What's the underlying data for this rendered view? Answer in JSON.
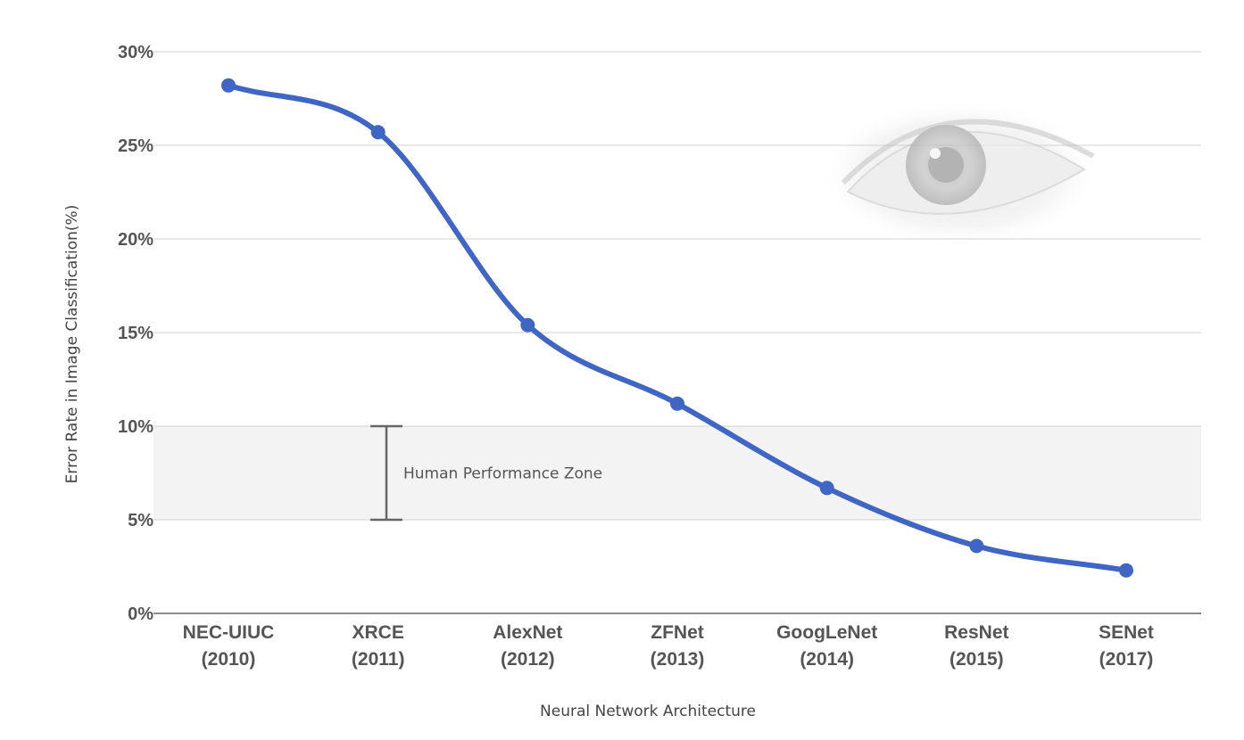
{
  "chart_data": {
    "type": "line",
    "title": "",
    "xlabel": "Neural Network Architecture",
    "ylabel": "Error Rate in Image Classification(%)",
    "categories": [
      [
        "NEC-UIUC",
        "(2010)"
      ],
      [
        "XRCE",
        "(2011)"
      ],
      [
        "AlexNet",
        "(2012)"
      ],
      [
        "ZFNet",
        "(2013)"
      ],
      [
        "GoogLeNet",
        "(2014)"
      ],
      [
        "ResNet",
        "(2015)"
      ],
      [
        "SENet",
        "(2017)"
      ]
    ],
    "series": [
      {
        "values": [
          28.2,
          25.7,
          15.4,
          11.2,
          6.7,
          3.6,
          2.3
        ]
      }
    ],
    "ylim": [
      0,
      30
    ],
    "yticks": [
      0,
      5,
      10,
      15,
      20,
      25,
      30
    ],
    "ytick_labels": [
      "0%",
      "5%",
      "10%",
      "15%",
      "20%",
      "25%",
      "30%"
    ],
    "grid": true,
    "smooth": true,
    "line_color": "#3f66c4",
    "band": {
      "from": 5,
      "to": 10,
      "color": "#f3f3f3"
    },
    "annotation": {
      "text": "Human Performance Zone",
      "from": 5,
      "to": 10
    },
    "background_image": "faded-eye-photo"
  }
}
